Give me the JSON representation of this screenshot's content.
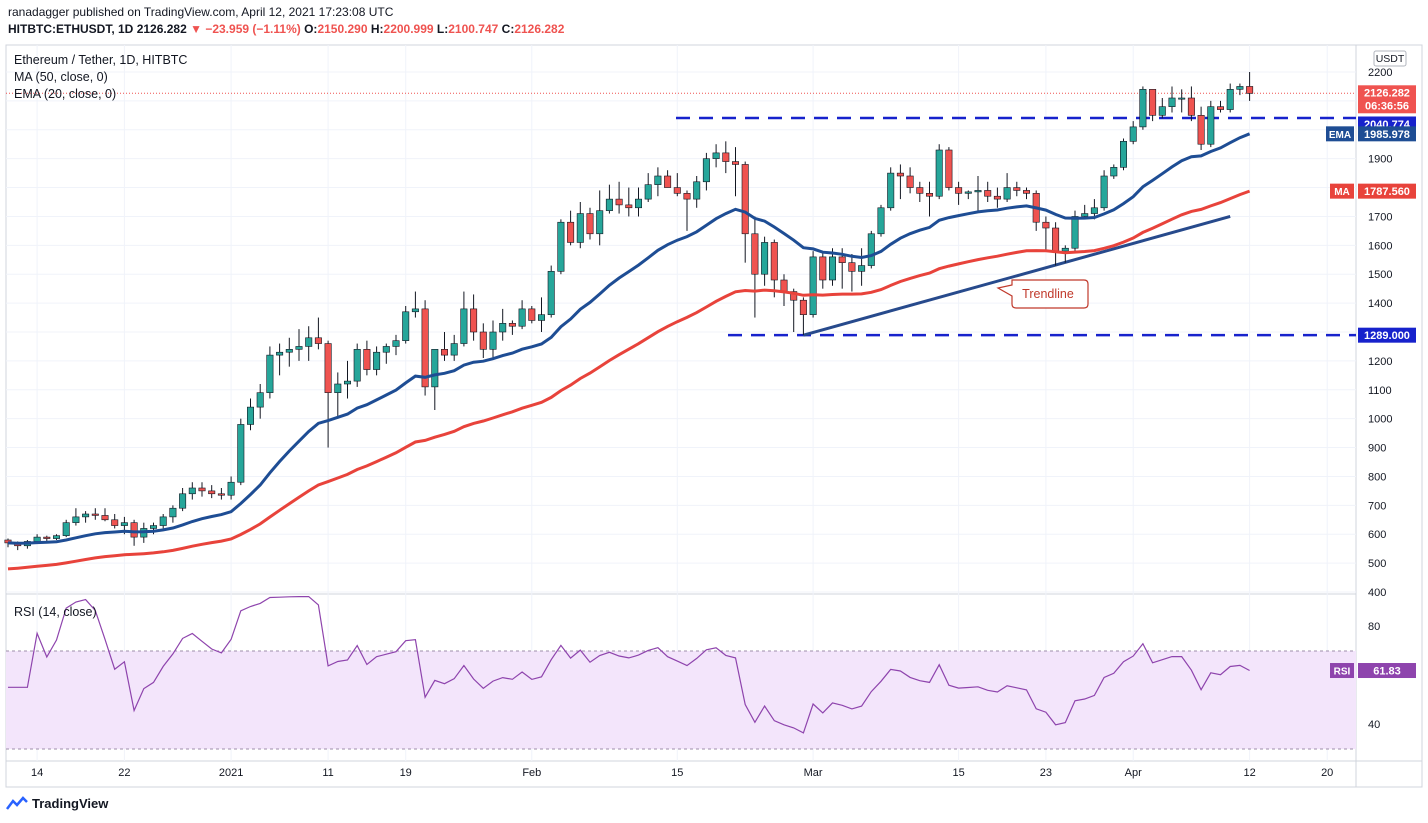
{
  "header": {
    "published_line": "ranadagger published on TradingView.com, April 12, 2021 17:23:08 UTC",
    "symbol_line": "HITBTC:ETHUSDT, 1D",
    "last": "2126.282",
    "change": "−23.959 (−1.11%)",
    "o": "2150.290",
    "h": "2200.999",
    "l": "2100.747",
    "c": "2126.282",
    "o_label": "O:",
    "h_label": "H:",
    "l_label": "L:",
    "c_label": "C:"
  },
  "legend": {
    "title": "Ethereum / Tether, 1D, HITBTC",
    "ma": "MA (50, close, 0)",
    "ema": "EMA (20, close, 0)",
    "rsi": "RSI (14, close)"
  },
  "price_axis": {
    "currency": "USDT",
    "ticks": [
      "2200",
      "2100",
      "2000",
      "1900",
      "1800",
      "1700",
      "1600",
      "1500",
      "1400",
      "1300",
      "1200",
      "1100",
      "1000",
      "900",
      "800",
      "700",
      "600",
      "500",
      "400"
    ],
    "last_label": "2126.282",
    "countdown": "06:36:56",
    "resistance_label": "2040.774",
    "support_label": "1289.000",
    "ema_tag": "EMA",
    "ema_value": "1985.978",
    "ma_tag": "MA",
    "ma_value": "1787.560"
  },
  "rsi_axis": {
    "ticks": [
      "80",
      "40"
    ],
    "tag": "RSI",
    "value": "61.83"
  },
  "time_axis": {
    "ticks": [
      "14",
      "22",
      "2021",
      "11",
      "19",
      "Feb",
      "15",
      "Mar",
      "15",
      "23",
      "Apr",
      "12",
      "20"
    ]
  },
  "annotations": {
    "trendline_label": "Trendline"
  },
  "colors": {
    "up": "#26a69a",
    "down": "#ef5350",
    "ema": "#1e4d94",
    "ma": "#e8433b",
    "rsi": "#8e44ad",
    "level": "#1722cc",
    "trendline": "#274a8c"
  },
  "footer": {
    "brand": "TradingView"
  },
  "chart_data": {
    "type": "candlestick",
    "title": "Ethereum / Tether, 1D, HITBTC",
    "ylabel": "USDT",
    "ylim": [
      400,
      2250
    ],
    "candles": [
      [
        580,
        585,
        555,
        570
      ],
      [
        570,
        575,
        545,
        560
      ],
      [
        560,
        580,
        550,
        575
      ],
      [
        575,
        600,
        570,
        590
      ],
      [
        590,
        595,
        575,
        585
      ],
      [
        585,
        600,
        580,
        595
      ],
      [
        595,
        650,
        590,
        640
      ],
      [
        640,
        690,
        630,
        660
      ],
      [
        660,
        680,
        640,
        670
      ],
      [
        670,
        690,
        650,
        665
      ],
      [
        665,
        690,
        645,
        650
      ],
      [
        650,
        670,
        620,
        630
      ],
      [
        630,
        660,
        600,
        640
      ],
      [
        640,
        650,
        560,
        590
      ],
      [
        590,
        640,
        570,
        620
      ],
      [
        620,
        640,
        600,
        630
      ],
      [
        630,
        670,
        620,
        660
      ],
      [
        660,
        700,
        640,
        690
      ],
      [
        690,
        760,
        680,
        740
      ],
      [
        740,
        780,
        720,
        760
      ],
      [
        760,
        780,
        730,
        750
      ],
      [
        750,
        770,
        725,
        740
      ],
      [
        740,
        760,
        720,
        735
      ],
      [
        735,
        800,
        720,
        780
      ],
      [
        780,
        1000,
        770,
        980
      ],
      [
        980,
        1070,
        960,
        1040
      ],
      [
        1040,
        1120,
        1000,
        1090
      ],
      [
        1090,
        1250,
        1070,
        1220
      ],
      [
        1220,
        1260,
        1150,
        1230
      ],
      [
        1230,
        1280,
        1180,
        1240
      ],
      [
        1240,
        1310,
        1200,
        1250
      ],
      [
        1250,
        1320,
        1200,
        1280
      ],
      [
        1280,
        1350,
        1240,
        1260
      ],
      [
        1260,
        1270,
        900,
        1090
      ],
      [
        1090,
        1160,
        1000,
        1120
      ],
      [
        1120,
        1200,
        1070,
        1130
      ],
      [
        1130,
        1260,
        1110,
        1240
      ],
      [
        1240,
        1270,
        1150,
        1170
      ],
      [
        1170,
        1250,
        1150,
        1230
      ],
      [
        1230,
        1260,
        1190,
        1250
      ],
      [
        1250,
        1290,
        1220,
        1270
      ],
      [
        1270,
        1390,
        1260,
        1370
      ],
      [
        1370,
        1440,
        1350,
        1380
      ],
      [
        1380,
        1410,
        1080,
        1110
      ],
      [
        1110,
        1240,
        1030,
        1240
      ],
      [
        1240,
        1300,
        1200,
        1220
      ],
      [
        1220,
        1290,
        1200,
        1260
      ],
      [
        1260,
        1440,
        1250,
        1380
      ],
      [
        1380,
        1430,
        1270,
        1300
      ],
      [
        1300,
        1330,
        1210,
        1240
      ],
      [
        1240,
        1340,
        1210,
        1300
      ],
      [
        1300,
        1380,
        1270,
        1330
      ],
      [
        1330,
        1340,
        1290,
        1320
      ],
      [
        1320,
        1410,
        1310,
        1380
      ],
      [
        1380,
        1390,
        1330,
        1340
      ],
      [
        1340,
        1420,
        1300,
        1360
      ],
      [
        1360,
        1530,
        1350,
        1510
      ],
      [
        1510,
        1690,
        1500,
        1680
      ],
      [
        1680,
        1720,
        1600,
        1610
      ],
      [
        1610,
        1750,
        1590,
        1710
      ],
      [
        1710,
        1730,
        1620,
        1640
      ],
      [
        1640,
        1790,
        1600,
        1720
      ],
      [
        1720,
        1810,
        1710,
        1760
      ],
      [
        1760,
        1820,
        1710,
        1740
      ],
      [
        1740,
        1800,
        1700,
        1730
      ],
      [
        1730,
        1800,
        1700,
        1760
      ],
      [
        1760,
        1850,
        1750,
        1810
      ],
      [
        1810,
        1870,
        1770,
        1840
      ],
      [
        1840,
        1860,
        1800,
        1800
      ],
      [
        1800,
        1850,
        1770,
        1780
      ],
      [
        1780,
        1790,
        1650,
        1760
      ],
      [
        1760,
        1840,
        1730,
        1820
      ],
      [
        1820,
        1920,
        1790,
        1900
      ],
      [
        1900,
        1950,
        1870,
        1920
      ],
      [
        1920,
        1960,
        1850,
        1890
      ],
      [
        1890,
        1940,
        1770,
        1880
      ],
      [
        1880,
        1890,
        1540,
        1640
      ],
      [
        1640,
        1700,
        1350,
        1500
      ],
      [
        1500,
        1630,
        1460,
        1610
      ],
      [
        1610,
        1620,
        1420,
        1480
      ],
      [
        1480,
        1500,
        1390,
        1440
      ],
      [
        1440,
        1450,
        1300,
        1410
      ],
      [
        1410,
        1420,
        1290,
        1360
      ],
      [
        1360,
        1580,
        1350,
        1560
      ],
      [
        1560,
        1580,
        1450,
        1480
      ],
      [
        1480,
        1590,
        1460,
        1560
      ],
      [
        1560,
        1590,
        1450,
        1540
      ],
      [
        1540,
        1570,
        1440,
        1510
      ],
      [
        1510,
        1590,
        1460,
        1530
      ],
      [
        1530,
        1650,
        1520,
        1640
      ],
      [
        1640,
        1740,
        1630,
        1730
      ],
      [
        1730,
        1870,
        1720,
        1850
      ],
      [
        1850,
        1880,
        1760,
        1840
      ],
      [
        1840,
        1870,
        1780,
        1800
      ],
      [
        1800,
        1820,
        1750,
        1780
      ],
      [
        1780,
        1820,
        1700,
        1770
      ],
      [
        1770,
        1950,
        1760,
        1930
      ],
      [
        1930,
        1940,
        1790,
        1800
      ],
      [
        1800,
        1820,
        1740,
        1780
      ],
      [
        1780,
        1790,
        1760,
        1785
      ],
      [
        1785,
        1840,
        1720,
        1790
      ],
      [
        1790,
        1820,
        1750,
        1770
      ],
      [
        1770,
        1800,
        1730,
        1760
      ],
      [
        1760,
        1850,
        1750,
        1800
      ],
      [
        1800,
        1820,
        1770,
        1790
      ],
      [
        1790,
        1800,
        1760,
        1780
      ],
      [
        1780,
        1790,
        1650,
        1680
      ],
      [
        1680,
        1700,
        1580,
        1660
      ],
      [
        1660,
        1680,
        1530,
        1580
      ],
      [
        1580,
        1600,
        1540,
        1590
      ],
      [
        1590,
        1720,
        1580,
        1700
      ],
      [
        1700,
        1740,
        1690,
        1710
      ],
      [
        1710,
        1760,
        1690,
        1730
      ],
      [
        1730,
        1860,
        1720,
        1840
      ],
      [
        1840,
        1880,
        1830,
        1870
      ],
      [
        1870,
        1970,
        1860,
        1960
      ],
      [
        1960,
        2030,
        1950,
        2010
      ],
      [
        2010,
        2150,
        2000,
        2140
      ],
      [
        2140,
        2140,
        2030,
        2050
      ],
      [
        2050,
        2110,
        2040,
        2080
      ],
      [
        2080,
        2150,
        2060,
        2110
      ],
      [
        2110,
        2140,
        2060,
        2110
      ],
      [
        2110,
        2150,
        2030,
        2050
      ],
      [
        2050,
        2080,
        1930,
        1950
      ],
      [
        1950,
        2100,
        1940,
        2080
      ],
      [
        2080,
        2100,
        2060,
        2070
      ],
      [
        2070,
        2160,
        2060,
        2140
      ],
      [
        2140,
        2160,
        2120,
        2150
      ],
      [
        2150,
        2200,
        2100,
        2126
      ]
    ],
    "ema20_end": 1985.978,
    "ma50_end": 1787.56,
    "resistance": 2040.774,
    "support": 1289.0,
    "rsi_last": 61.83,
    "x_ticks": [
      "14",
      "22",
      "2021",
      "11",
      "19",
      "Feb",
      "15",
      "Mar",
      "15",
      "23",
      "Apr",
      "12",
      "20"
    ]
  }
}
